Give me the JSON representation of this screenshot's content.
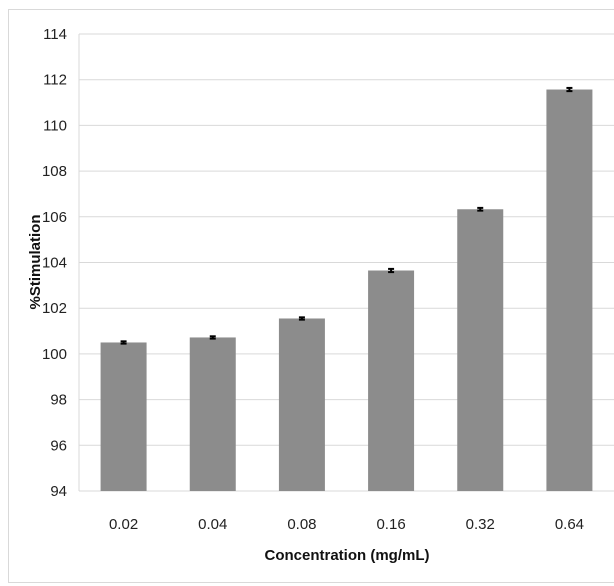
{
  "chart_data": {
    "type": "bar",
    "categories": [
      "0.02",
      "0.04",
      "0.08",
      "0.16",
      "0.32",
      "0.64"
    ],
    "values": [
      100.5,
      100.72,
      101.55,
      103.65,
      106.33,
      111.57
    ],
    "error": [
      0.05,
      0.05,
      0.05,
      0.07,
      0.06,
      0.07
    ],
    "xlabel": "Concentration (mg/mL)",
    "ylabel": "%Stimulation",
    "ylim": [
      94,
      114
    ],
    "yticks": [
      "94",
      "96",
      "98",
      "100",
      "102",
      "104",
      "106",
      "108",
      "110",
      "112",
      "114"
    ],
    "grid": true,
    "bar_color": "#8c8c8c",
    "grid_color": "#d9d9d9",
    "error_color": "#000000"
  }
}
